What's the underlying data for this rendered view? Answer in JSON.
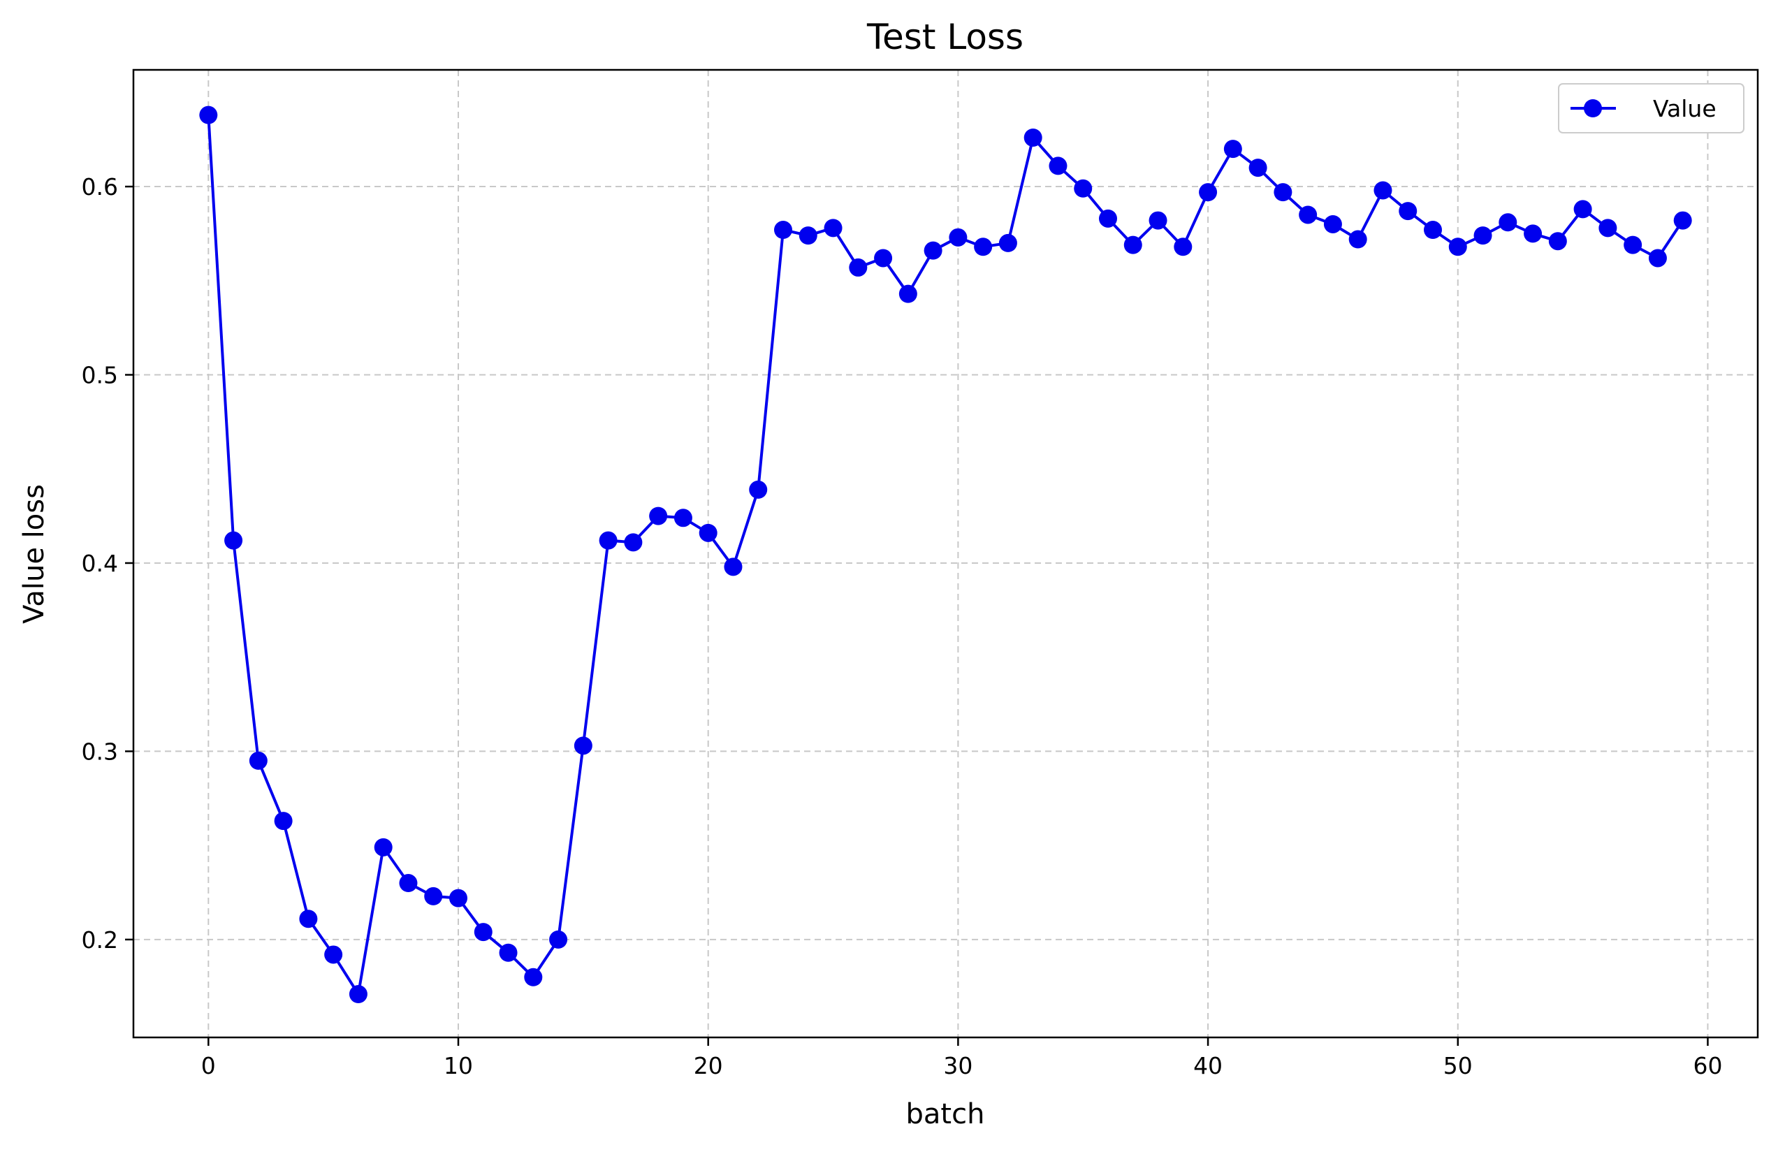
{
  "chart_data": {
    "type": "line",
    "title": "Test Loss",
    "xlabel": "batch",
    "ylabel": "Value loss",
    "xlim": [
      -3,
      62
    ],
    "ylim": [
      0.148,
      0.662
    ],
    "xticks": [
      0,
      10,
      20,
      30,
      40,
      50,
      60
    ],
    "yticks": [
      0.2,
      0.3,
      0.4,
      0.5,
      0.6
    ],
    "xtick_labels": [
      "0",
      "10",
      "20",
      "30",
      "40",
      "50",
      "60"
    ],
    "ytick_labels": [
      "0.2",
      "0.3",
      "0.4",
      "0.5",
      "0.6"
    ],
    "grid": true,
    "legend_position": "top-right",
    "series": [
      {
        "name": "Value",
        "color": "#0000ee",
        "marker": "circle",
        "x": [
          0,
          1,
          2,
          3,
          4,
          5,
          6,
          7,
          8,
          9,
          10,
          11,
          12,
          13,
          14,
          15,
          16,
          17,
          18,
          19,
          20,
          21,
          22,
          23,
          24,
          25,
          26,
          27,
          28,
          29,
          30,
          31,
          32,
          33,
          34,
          35,
          36,
          37,
          38,
          39,
          40,
          41,
          42,
          43,
          44,
          45,
          46,
          47,
          48,
          49,
          50,
          51,
          52,
          53,
          54,
          55,
          56,
          57,
          58,
          59
        ],
        "values": [
          0.638,
          0.412,
          0.295,
          0.263,
          0.211,
          0.192,
          0.171,
          0.249,
          0.23,
          0.223,
          0.222,
          0.204,
          0.193,
          0.18,
          0.2,
          0.303,
          0.412,
          0.411,
          0.425,
          0.424,
          0.416,
          0.398,
          0.439,
          0.577,
          0.574,
          0.578,
          0.557,
          0.562,
          0.543,
          0.566,
          0.573,
          0.568,
          0.57,
          0.626,
          0.611,
          0.599,
          0.583,
          0.569,
          0.582,
          0.568,
          0.597,
          0.62,
          0.61,
          0.597,
          0.585,
          0.58,
          0.572,
          0.598,
          0.587,
          0.577,
          0.568,
          0.574,
          0.581,
          0.575,
          0.571,
          0.588,
          0.578,
          0.569,
          0.562,
          0.582
        ]
      }
    ]
  }
}
